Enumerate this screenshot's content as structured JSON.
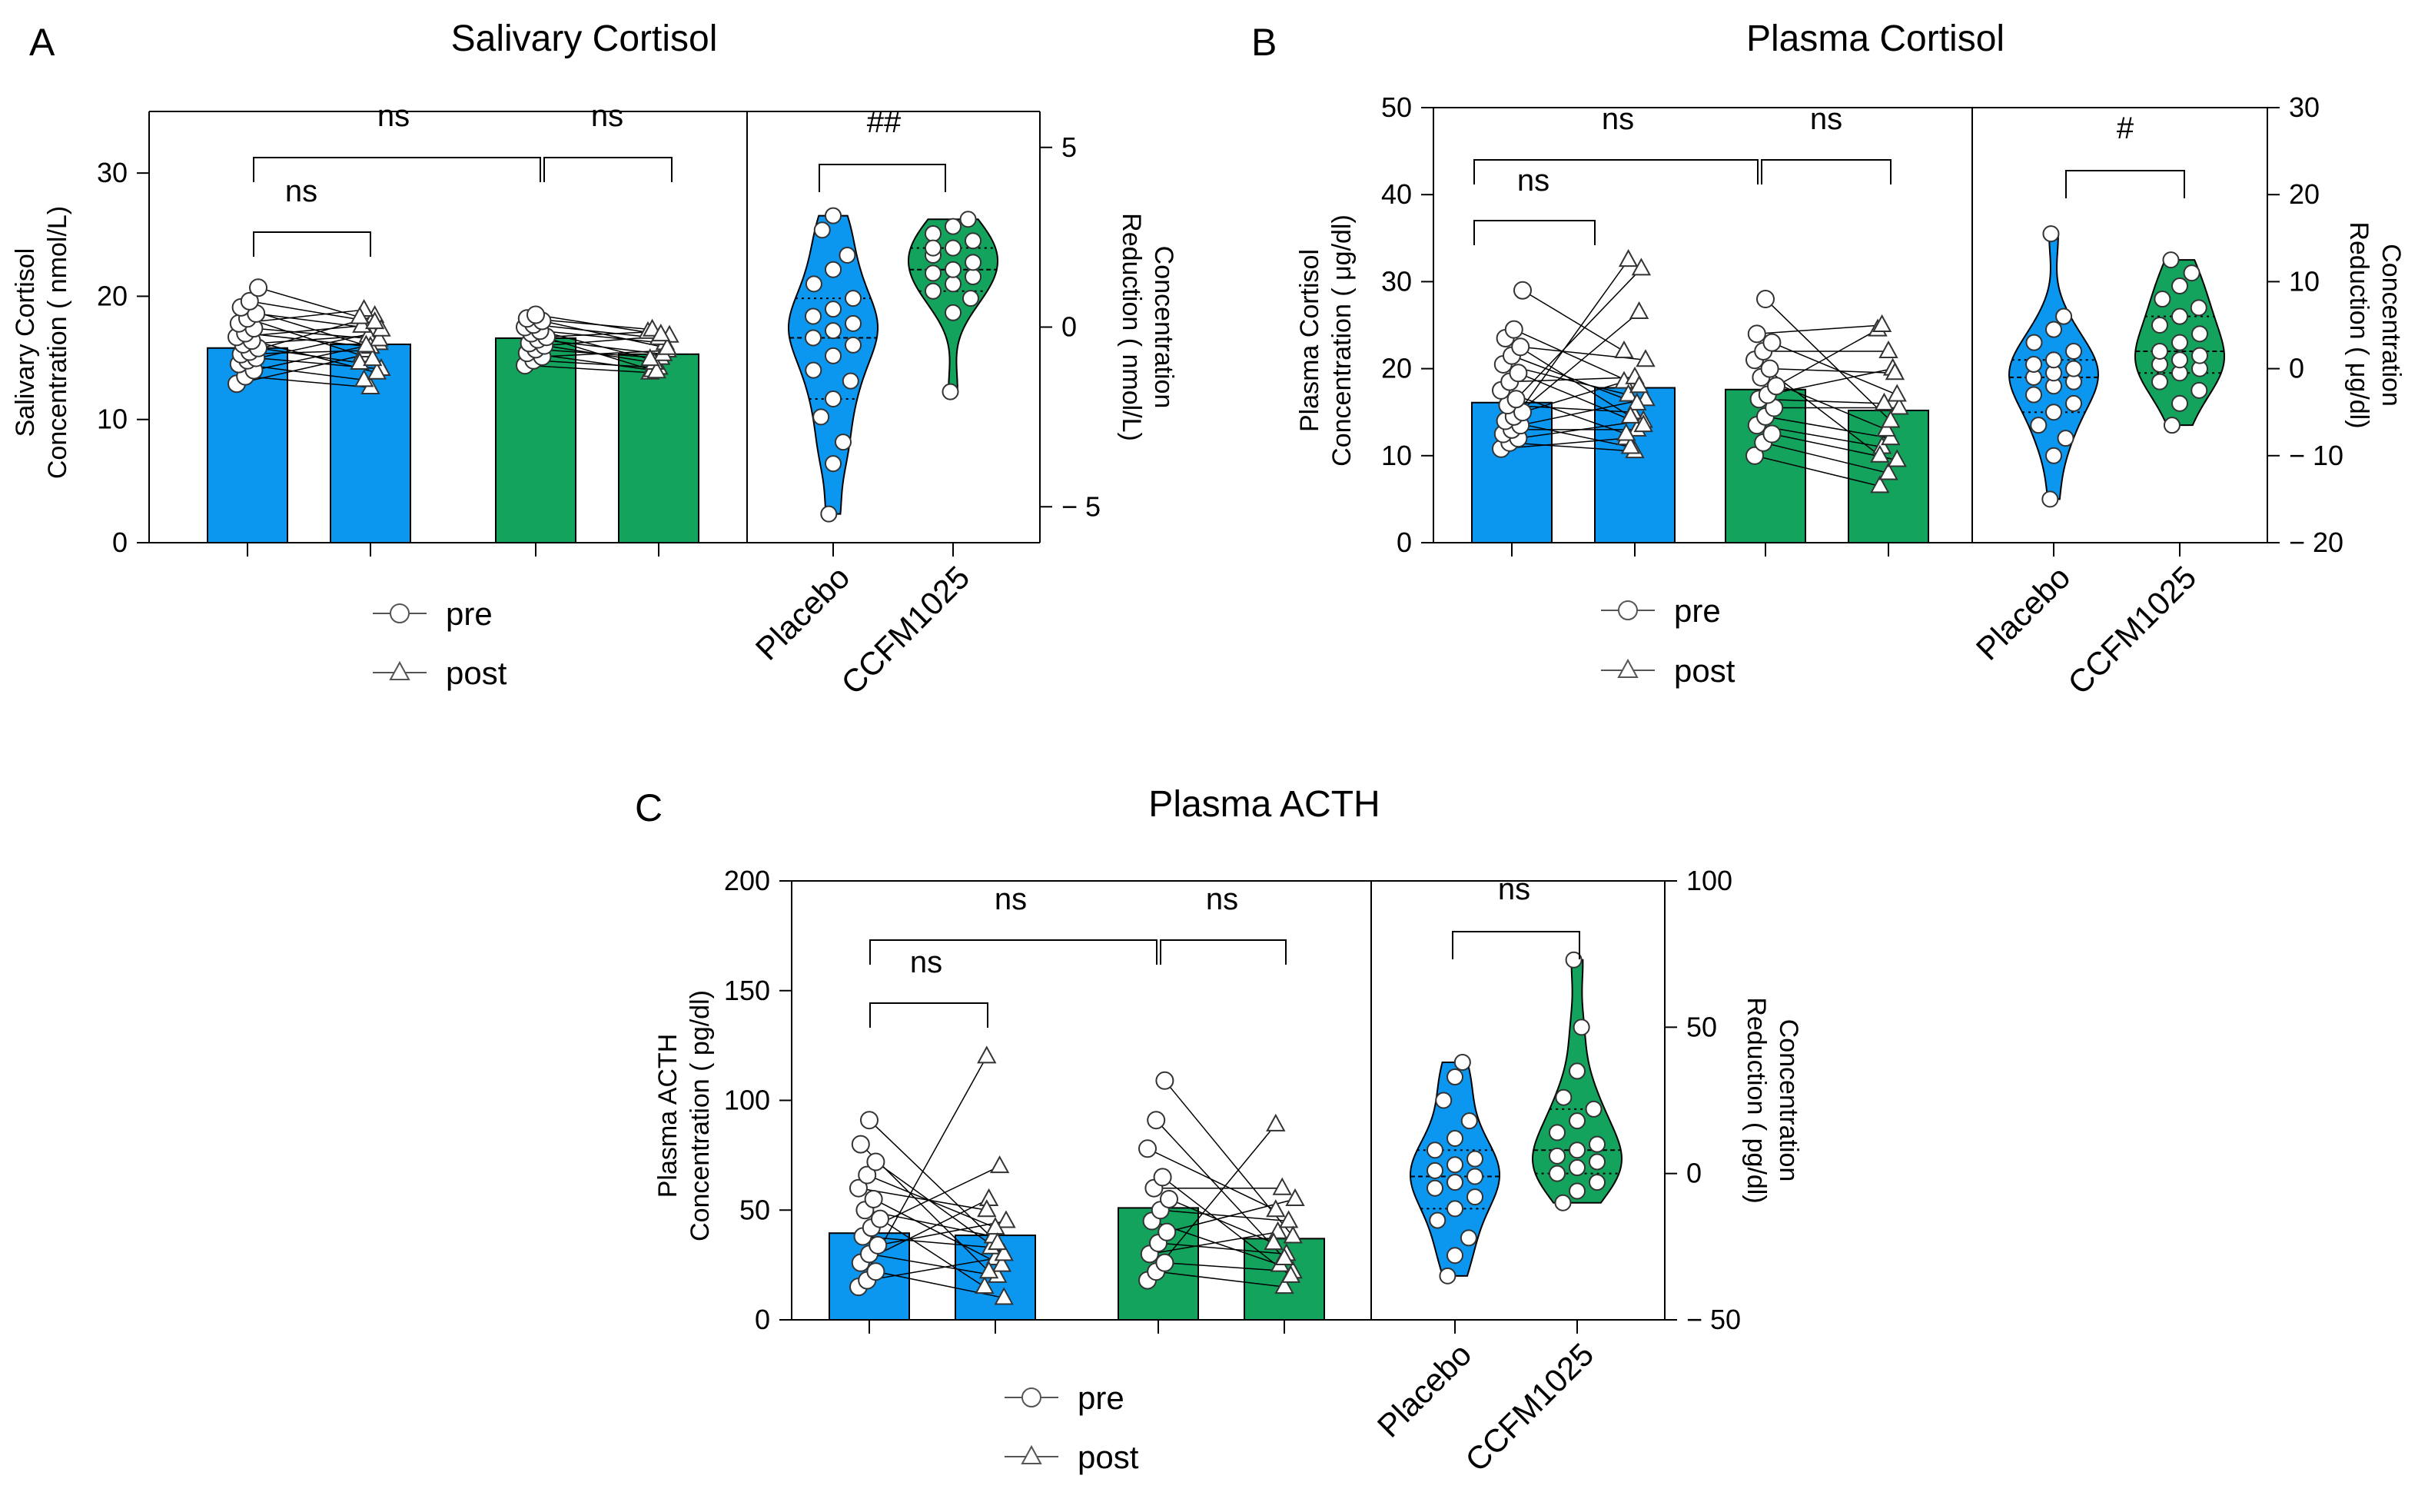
{
  "colors": {
    "placebo": "#0B97F0",
    "ccfm": "#13A35C",
    "axis": "#000000"
  },
  "legend": {
    "pre": "pre",
    "post": "post"
  },
  "chart_data": [
    {
      "panel": "A",
      "title": "Salivary Cortisol",
      "type": "bar",
      "left_ylabel": [
        "Salivary Cortisol",
        "Concentration ( nmol/L)"
      ],
      "left_ylim": [
        0,
        35
      ],
      "left_ticks": [
        "0",
        "10",
        "20",
        "30"
      ],
      "right_ylabel": [
        "Concentration",
        "Reduction ( nmol/L)"
      ],
      "right_ylim": [
        -6,
        6
      ],
      "right_ticks": [
        "− 5",
        "0",
        "5"
      ],
      "groups": [
        "Placebo",
        "CCFM1025"
      ],
      "legend": [
        "pre",
        "post"
      ],
      "bars": [
        {
          "group": "Placebo",
          "time": "pre",
          "value": 15.8
        },
        {
          "group": "Placebo",
          "time": "post",
          "value": 16.1
        },
        {
          "group": "CCFM1025",
          "time": "pre",
          "value": 16.6
        },
        {
          "group": "CCFM1025",
          "time": "post",
          "value": 15.3
        }
      ],
      "paired_points": {
        "Placebo": {
          "pre": [
            12.9,
            13.5,
            14.0,
            14.5,
            14.8,
            15.0,
            15.3,
            15.5,
            15.8,
            16.1,
            16.4,
            16.7,
            17.0,
            17.4,
            17.8,
            18.2,
            18.6,
            19.1,
            19.6,
            20.7
          ],
          "post": [
            15.2,
            12.6,
            16.2,
            13.2,
            17.0,
            14.1,
            15.6,
            18.4,
            14.6,
            16.8,
            13.8,
            17.6,
            15.9,
            16.5,
            18.9,
            14.9,
            17.3,
            16.0,
            17.9,
            18.3
          ]
        },
        "CCFM1025": {
          "pre": [
            14.4,
            14.8,
            15.1,
            15.4,
            15.7,
            16.0,
            16.2,
            16.5,
            16.7,
            17.0,
            17.2,
            17.5,
            17.7,
            18.0,
            18.2,
            18.5
          ],
          "post": [
            13.8,
            14.2,
            15.6,
            14.0,
            15.0,
            16.8,
            14.6,
            15.3,
            17.1,
            13.9,
            16.2,
            14.9,
            16.6,
            15.8,
            17.3,
            16.9
          ]
        }
      },
      "violin_points": {
        "Placebo": [
          -5.2,
          -3.8,
          -3.2,
          -2.5,
          -2.0,
          -1.5,
          -1.2,
          -0.8,
          -0.5,
          -0.3,
          -0.1,
          0.1,
          0.3,
          0.5,
          0.8,
          1.2,
          1.6,
          2.0,
          2.7,
          3.1
        ],
        "CCFM1025": [
          -1.8,
          0.4,
          0.8,
          1.0,
          1.2,
          1.4,
          1.5,
          1.6,
          1.8,
          2.0,
          2.2,
          2.4,
          2.6,
          2.8,
          3.0,
          2.2
        ]
      },
      "significance": [
        {
          "between": "placebo pre vs post",
          "label": "ns"
        },
        {
          "between": "placebo pre vs ccfm pre",
          "label": "ns"
        },
        {
          "between": "ccfm pre vs post",
          "label": "ns"
        },
        {
          "between": "placebo vs CCFM1025 reduction",
          "label": "##"
        }
      ]
    },
    {
      "panel": "B",
      "title": "Plasma Cortisol",
      "type": "bar",
      "left_ylabel": [
        "Plasma Cortisol",
        "Concentration ( μg/dl)"
      ],
      "left_ylim": [
        0,
        50
      ],
      "left_ticks": [
        "0",
        "10",
        "20",
        "30",
        "40",
        "50"
      ],
      "right_ylabel": [
        "Concentration",
        "Reduction ( μg/dl)"
      ],
      "right_ylim": [
        -20,
        30
      ],
      "right_ticks": [
        "− 20",
        "− 10",
        "0",
        "10",
        "20",
        "30"
      ],
      "groups": [
        "Placebo",
        "CCFM1025"
      ],
      "legend": [
        "pre",
        "post"
      ],
      "bars": [
        {
          "group": "Placebo",
          "time": "pre",
          "value": 16.1
        },
        {
          "group": "Placebo",
          "time": "post",
          "value": 17.8
        },
        {
          "group": "CCFM1025",
          "time": "pre",
          "value": 17.6
        },
        {
          "group": "CCFM1025",
          "time": "post",
          "value": 15.2
        }
      ],
      "paired_points": {
        "Placebo": {
          "pre": [
            10.8,
            11.5,
            12.0,
            12.5,
            13.0,
            13.5,
            14.0,
            14.5,
            15.0,
            15.8,
            16.5,
            17.5,
            18.5,
            19.5,
            20.5,
            21.5,
            22.5,
            23.5,
            24.5,
            29.0
          ],
          "post": [
            12.0,
            10.5,
            14.0,
            32.5,
            13.0,
            16.5,
            11.0,
            26.5,
            18.5,
            15.0,
            31.5,
            12.5,
            19.0,
            13.5,
            17.0,
            16.0,
            21.0,
            14.5,
            18.0,
            22.0
          ]
        },
        "CCFM1025": {
          "pre": [
            10.0,
            11.5,
            12.5,
            13.5,
            14.5,
            15.5,
            16.5,
            17.0,
            18.0,
            19.0,
            20.0,
            21.0,
            22.0,
            23.0,
            24.0,
            28.0
          ],
          "post": [
            6.5,
            8.0,
            9.5,
            11.0,
            12.0,
            15.5,
            16.0,
            20.0,
            24.5,
            13.0,
            19.5,
            10.0,
            22.0,
            17.0,
            25.0,
            14.0
          ]
        }
      },
      "violin_points": {
        "Placebo": [
          -15.0,
          -10.0,
          -8.0,
          -6.5,
          -5.0,
          -4.0,
          -3.0,
          -2.0,
          -1.5,
          -1.0,
          -0.5,
          0.0,
          0.5,
          1.0,
          2.0,
          3.0,
          4.5,
          6.0,
          15.5
        ],
        "CCFM1025": [
          -6.5,
          -4.0,
          -2.5,
          -1.5,
          -0.5,
          0.0,
          0.5,
          1.0,
          1.5,
          2.0,
          3.0,
          4.0,
          5.0,
          6.0,
          7.0,
          8.0,
          9.5,
          11.0,
          12.5
        ]
      },
      "significance": [
        {
          "between": "placebo pre vs post",
          "label": "ns"
        },
        {
          "between": "placebo pre vs ccfm pre",
          "label": "ns"
        },
        {
          "between": "ccfm pre vs post",
          "label": "ns"
        },
        {
          "between": "placebo vs CCFM1025 reduction",
          "label": "#"
        }
      ]
    },
    {
      "panel": "C",
      "title": "Plasma ACTH",
      "type": "bar",
      "left_ylabel": [
        "Plasma ACTH",
        "Concentration ( pg/dl)"
      ],
      "left_ylim": [
        0,
        200
      ],
      "left_ticks": [
        "0",
        "50",
        "100",
        "150",
        "200"
      ],
      "right_ylabel": [
        "Concentration",
        "Reduction ( pg/dl)"
      ],
      "right_ylim": [
        -50,
        100
      ],
      "right_ticks": [
        "− 50",
        "0",
        "50",
        "100"
      ],
      "groups": [
        "Placebo",
        "CCFM1025"
      ],
      "legend": [
        "pre",
        "post"
      ],
      "bars": [
        {
          "group": "Placebo",
          "time": "pre",
          "value": 39.5
        },
        {
          "group": "Placebo",
          "time": "post",
          "value": 38.5
        },
        {
          "group": "CCFM1025",
          "time": "pre",
          "value": 51.0
        },
        {
          "group": "CCFM1025",
          "time": "post",
          "value": 37.0
        }
      ],
      "paired_points": {
        "Placebo": {
          "pre": [
            15.0,
            18.0,
            22.0,
            26.0,
            30.0,
            34.0,
            38.0,
            42.0,
            46.0,
            50.0,
            55.0,
            60.0,
            66.0,
            72.0,
            80.0,
            91.0
          ],
          "post": [
            120.0,
            28.0,
            10.0,
            55.0,
            20.0,
            45.0,
            33.0,
            70.0,
            15.0,
            38.0,
            25.0,
            50.0,
            42.0,
            30.0,
            22.0,
            35.0
          ]
        },
        "CCFM1025": {
          "pre": [
            18.0,
            22.0,
            26.0,
            30.0,
            35.0,
            40.0,
            45.0,
            50.0,
            55.0,
            60.0,
            65.0,
            78.0,
            91.0,
            109.0
          ],
          "post": [
            89.0,
            15.0,
            22.0,
            40.0,
            30.0,
            55.0,
            25.0,
            45.0,
            35.0,
            60.0,
            20.0,
            50.0,
            28.0,
            38.0
          ]
        }
      },
      "violin_points": {
        "Placebo": [
          -35.0,
          -28.0,
          -22.0,
          -16.0,
          -12.0,
          -8.0,
          -5.0,
          -3.0,
          -1.0,
          1.0,
          3.0,
          5.0,
          8.0,
          12.0,
          18.0,
          25.0,
          33.0,
          38.0
        ],
        "CCFM1025": [
          -10.0,
          -6.0,
          -3.0,
          0.0,
          2.0,
          4.0,
          6.0,
          8.0,
          10.0,
          14.0,
          18.0,
          22.0,
          26.0,
          35.0,
          50.0,
          73.0
        ]
      },
      "significance": [
        {
          "between": "placebo pre vs post",
          "label": "ns"
        },
        {
          "between": "placebo pre vs ccfm pre",
          "label": "ns"
        },
        {
          "between": "ccfm pre vs post",
          "label": "ns"
        },
        {
          "between": "placebo vs CCFM1025 reduction",
          "label": "ns"
        }
      ]
    }
  ]
}
